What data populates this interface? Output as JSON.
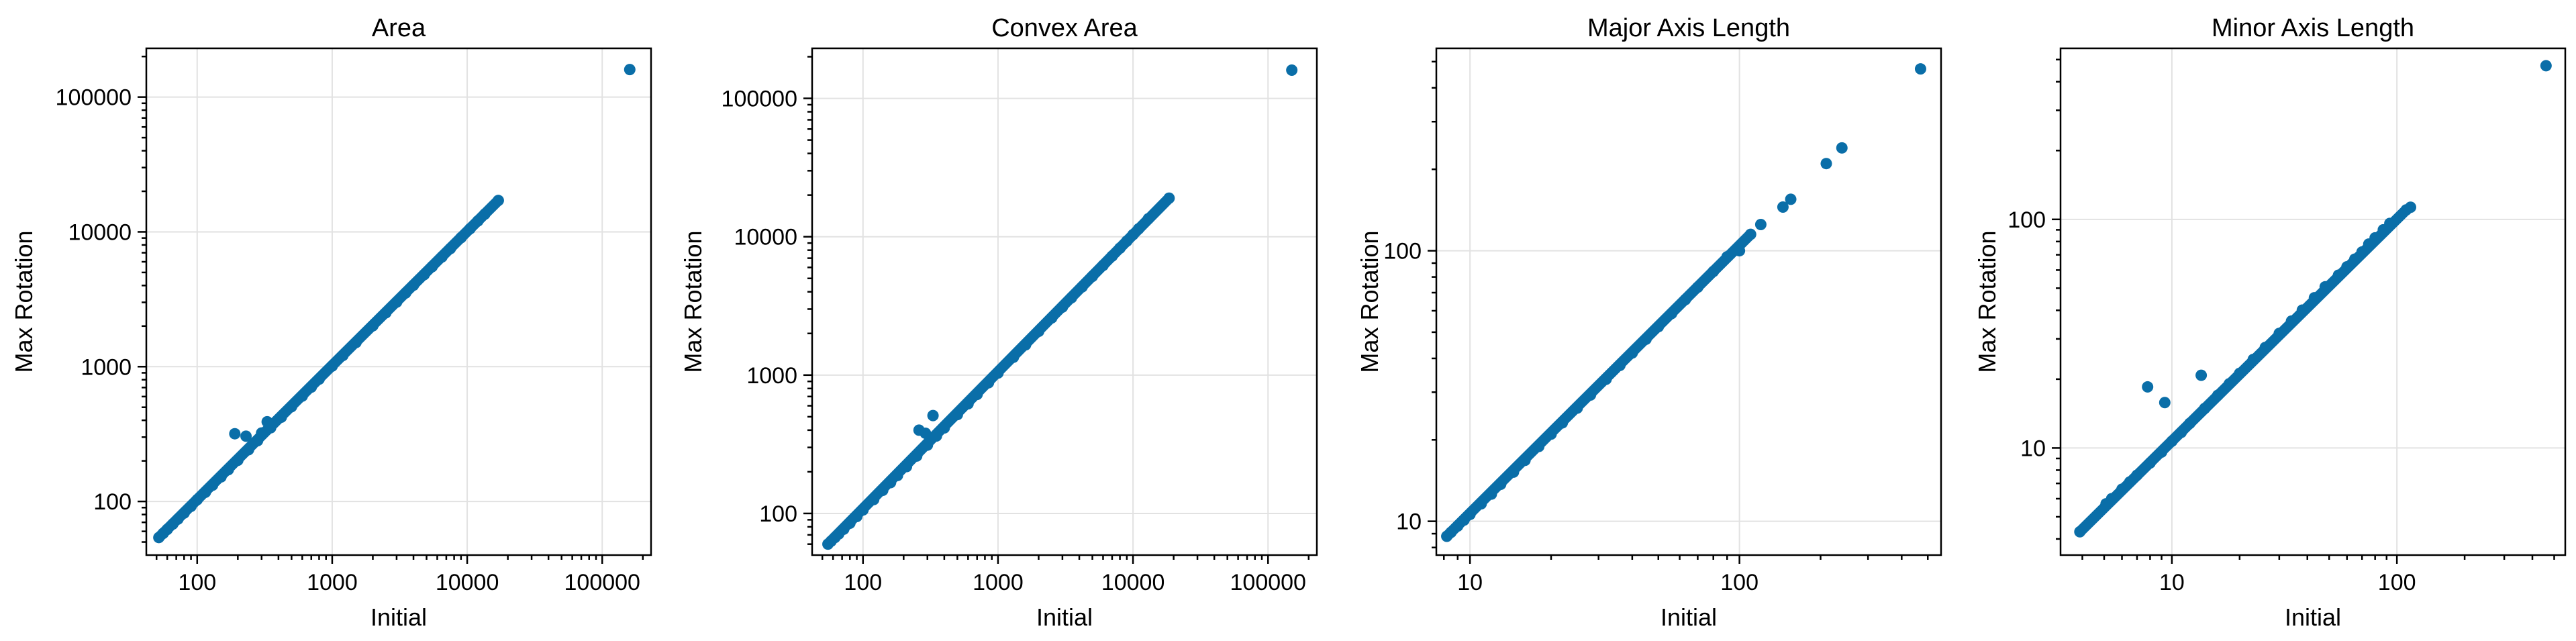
{
  "chart_data": [
    {
      "type": "scatter",
      "title": "Area",
      "xlabel": "Initial",
      "ylabel": "Max Rotation",
      "xscale": "log",
      "yscale": "log",
      "xlim": [
        42,
        230000
      ],
      "ylim": [
        40,
        230000
      ],
      "xticks": [
        100,
        1000,
        10000,
        100000
      ],
      "xtick_labels": [
        "100",
        "1000",
        "10000",
        "100000"
      ],
      "yticks": [
        100,
        1000,
        10000,
        100000
      ],
      "ytick_labels": [
        "100",
        "1000",
        "10000",
        "100000"
      ],
      "grid": true,
      "color": "#0a6ea8",
      "points": [
        [
          52,
          54
        ],
        [
          56,
          58
        ],
        [
          60,
          62
        ],
        [
          66,
          68
        ],
        [
          72,
          74
        ],
        [
          80,
          82
        ],
        [
          90,
          92
        ],
        [
          100,
          103
        ],
        [
          115,
          117
        ],
        [
          130,
          132
        ],
        [
          150,
          152
        ],
        [
          170,
          172
        ],
        [
          190,
          318
        ],
        [
          200,
          202
        ],
        [
          230,
          305
        ],
        [
          240,
          242
        ],
        [
          280,
          282
        ],
        [
          300,
          322
        ],
        [
          330,
          390
        ],
        [
          350,
          352
        ],
        [
          420,
          422
        ],
        [
          500,
          505
        ],
        [
          600,
          605
        ],
        [
          700,
          705
        ],
        [
          800,
          808
        ],
        [
          1000,
          1010
        ],
        [
          1200,
          1210
        ],
        [
          1500,
          1510
        ],
        [
          2000,
          2010
        ],
        [
          2500,
          2510
        ],
        [
          3000,
          3010
        ],
        [
          3500,
          3520
        ],
        [
          4000,
          4020
        ],
        [
          4800,
          4820
        ],
        [
          5500,
          5520
        ],
        [
          6500,
          6520
        ],
        [
          7500,
          7520
        ],
        [
          9000,
          9050
        ],
        [
          10500,
          10550
        ],
        [
          12000,
          12050
        ],
        [
          13500,
          13550
        ],
        [
          17000,
          17100
        ],
        [
          160000,
          160000
        ]
      ]
    },
    {
      "type": "scatter",
      "title": "Convex Area",
      "xlabel": "Initial",
      "ylabel": "Max Rotation",
      "xscale": "log",
      "yscale": "log",
      "xlim": [
        42,
        230000
      ],
      "ylim": [
        50,
        230000
      ],
      "xticks": [
        100,
        1000,
        10000,
        100000
      ],
      "xtick_labels": [
        "100",
        "1000",
        "10000",
        "100000"
      ],
      "yticks": [
        100,
        1000,
        10000,
        100000
      ],
      "ytick_labels": [
        "100",
        "1000",
        "10000",
        "100000"
      ],
      "grid": true,
      "color": "#0a6ea8",
      "points": [
        [
          55,
          60
        ],
        [
          58,
          63
        ],
        [
          62,
          67
        ],
        [
          66,
          71
        ],
        [
          72,
          77
        ],
        [
          80,
          85
        ],
        [
          90,
          95
        ],
        [
          100,
          106
        ],
        [
          120,
          126
        ],
        [
          140,
          147
        ],
        [
          160,
          167
        ],
        [
          180,
          188
        ],
        [
          210,
          218
        ],
        [
          250,
          260
        ],
        [
          260,
          400
        ],
        [
          290,
          380
        ],
        [
          300,
          312
        ],
        [
          330,
          510
        ],
        [
          350,
          363
        ],
        [
          400,
          415
        ],
        [
          500,
          518
        ],
        [
          600,
          620
        ],
        [
          700,
          725
        ],
        [
          850,
          880
        ],
        [
          1000,
          1035
        ],
        [
          1300,
          1345
        ],
        [
          1600,
          1655
        ],
        [
          2000,
          2070
        ],
        [
          2500,
          2590
        ],
        [
          3000,
          3100
        ],
        [
          3500,
          3620
        ],
        [
          4200,
          4340
        ],
        [
          5000,
          5170
        ],
        [
          6000,
          6200
        ],
        [
          7000,
          7240
        ],
        [
          8000,
          8270
        ],
        [
          9000,
          9300
        ],
        [
          10000,
          10350
        ],
        [
          11000,
          11400
        ],
        [
          13000,
          13500
        ],
        [
          18500,
          19000
        ],
        [
          150000,
          160000
        ]
      ]
    },
    {
      "type": "scatter",
      "title": "Major Axis Length",
      "xlabel": "Initial",
      "ylabel": "Max Rotation",
      "xscale": "log",
      "yscale": "log",
      "xlim": [
        7.5,
        560
      ],
      "ylim": [
        7.5,
        560
      ],
      "xticks": [
        10,
        100
      ],
      "xtick_labels": [
        "10",
        "100"
      ],
      "yticks": [
        10,
        100
      ],
      "ytick_labels": [
        "10",
        "100"
      ],
      "grid": true,
      "color": "#0a6ea8",
      "points": [
        [
          8.2,
          8.8
        ],
        [
          8.5,
          9.1
        ],
        [
          9,
          9.6
        ],
        [
          9.5,
          10.1
        ],
        [
          10,
          10.6
        ],
        [
          11,
          11.6
        ],
        [
          12,
          12.6
        ],
        [
          13,
          13.7
        ],
        [
          14.5,
          15.2
        ],
        [
          16,
          16.8
        ],
        [
          18,
          18.9
        ],
        [
          20,
          21
        ],
        [
          22,
          23.1
        ],
        [
          25,
          26.2
        ],
        [
          28,
          29.3
        ],
        [
          32,
          33.5
        ],
        [
          36,
          37.7
        ],
        [
          40,
          41.9
        ],
        [
          45,
          47.1
        ],
        [
          50,
          52.4
        ],
        [
          56,
          58.6
        ],
        [
          63,
          66
        ],
        [
          70,
          73.3
        ],
        [
          80,
          83.8
        ],
        [
          90,
          95
        ],
        [
          100,
          100
        ],
        [
          110,
          115
        ],
        [
          120,
          125
        ],
        [
          145,
          145
        ],
        [
          155,
          155
        ],
        [
          210,
          210
        ],
        [
          240,
          240
        ],
        [
          470,
          470
        ]
      ]
    },
    {
      "type": "scatter",
      "title": "Minor Axis Length",
      "xlabel": "Initial",
      "ylabel": "Max Rotation",
      "xscale": "log",
      "yscale": "log",
      "xlim": [
        3.2,
        560
      ],
      "ylim": [
        3.4,
        560
      ],
      "xticks": [
        10,
        100
      ],
      "xtick_labels": [
        "10",
        "100"
      ],
      "yticks": [
        10,
        100
      ],
      "ytick_labels": [
        "10",
        "100"
      ],
      "grid": true,
      "color": "#0a6ea8",
      "points": [
        [
          3.9,
          4.3
        ],
        [
          5.1,
          5.7
        ],
        [
          5.4,
          6
        ],
        [
          6,
          6.6
        ],
        [
          6.5,
          7.1
        ],
        [
          7,
          7.6
        ],
        [
          7.8,
          18.5
        ],
        [
          8,
          8.6
        ],
        [
          9,
          9.6
        ],
        [
          9.3,
          15.8
        ],
        [
          10,
          10.7
        ],
        [
          11,
          11.7
        ],
        [
          12,
          12.8
        ],
        [
          13.5,
          20.8
        ],
        [
          14,
          14.9
        ],
        [
          16,
          17
        ],
        [
          18,
          19.1
        ],
        [
          20,
          21.2
        ],
        [
          23,
          24.4
        ],
        [
          26,
          27.5
        ],
        [
          30,
          31.7
        ],
        [
          34,
          35.9
        ],
        [
          38,
          40.1
        ],
        [
          43,
          45.4
        ],
        [
          48,
          50.7
        ],
        [
          55,
          57
        ],
        [
          60,
          62
        ],
        [
          65,
          67
        ],
        [
          70,
          72
        ],
        [
          75,
          78
        ],
        [
          80,
          83
        ],
        [
          87,
          90
        ],
        [
          93,
          96
        ],
        [
          110,
          110
        ],
        [
          115,
          113
        ],
        [
          460,
          470
        ]
      ]
    }
  ]
}
